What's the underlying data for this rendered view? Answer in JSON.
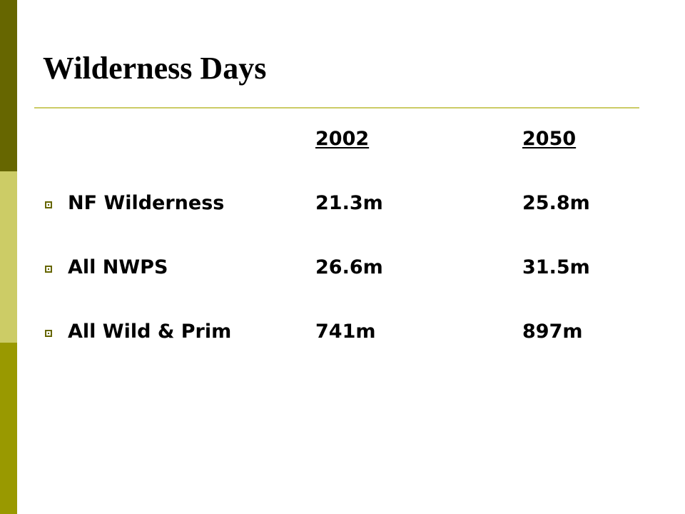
{
  "slide": {
    "title": "Wilderness Days",
    "colors": {
      "accent_dark": "#666600",
      "accent_light": "#cccc66",
      "accent_mid": "#999900",
      "rule": "#cccc66",
      "bullet": "#666600"
    },
    "table": {
      "headers": [
        "2002 ",
        "2050"
      ],
      "rows": [
        {
          "label": "NF Wilderness",
          "values": [
            "21.3m",
            "25.8m"
          ]
        },
        {
          "label": "All NWPS",
          "values": [
            "26.6m",
            "31.5m"
          ]
        },
        {
          "label": "All Wild & Prim",
          "values": [
            "741m",
            "897m"
          ]
        }
      ]
    },
    "bullet_icon": "hollow-square-bullet-icon"
  }
}
